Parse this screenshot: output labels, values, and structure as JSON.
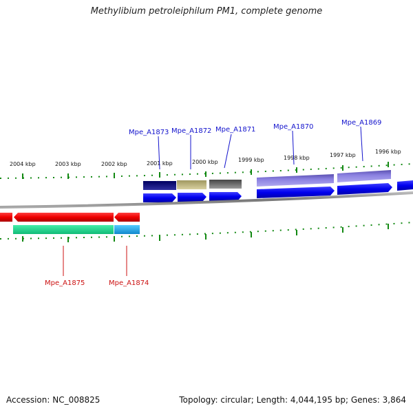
{
  "title": "Methylibium petroleiphilum PM1, complete genome",
  "footer": {
    "accession": "Accession: NC_008825",
    "summary": "Topology: circular; Length: 4,044,195 bp; Genes: 3,864"
  },
  "ticks": [
    "2004 kbp",
    "2003 kbp",
    "2002 kbp",
    "2001 kbp",
    "2000 kbp",
    "1999 kbp",
    "1998 kbp",
    "1997 kbp",
    "1996 kbp"
  ],
  "genes_top": [
    "Mpe_A1873",
    "Mpe_A1872",
    "Mpe_A1871",
    "Mpe_A1870",
    "Mpe_A1869"
  ],
  "genes_bottom": [
    "Mpe_A1875",
    "Mpe_A1874"
  ],
  "colors": {
    "forward_cds": "#0000ee",
    "reverse_cds": "#ee0000",
    "teal_feature": "#22dd99",
    "cyan_feature": "#22aaee",
    "tick_green": "#118811",
    "backbone": "#888888"
  }
}
